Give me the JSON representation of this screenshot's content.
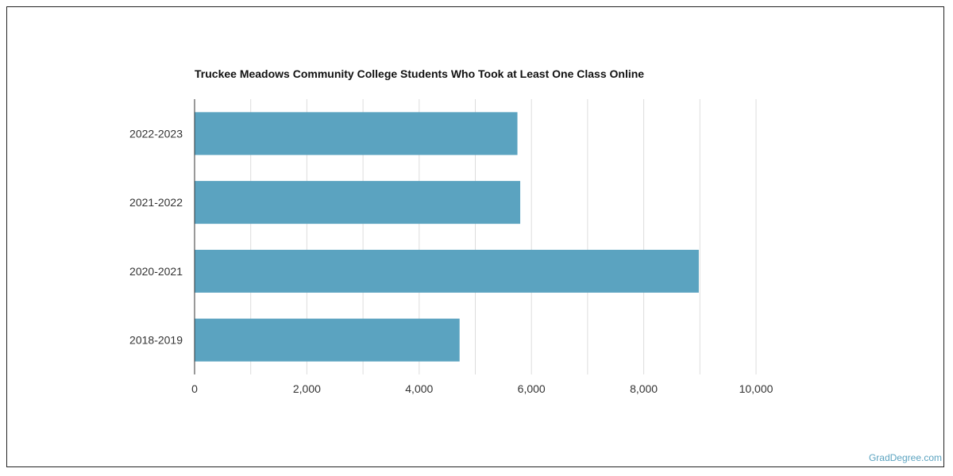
{
  "chart_data": {
    "type": "bar",
    "orientation": "horizontal",
    "title": "Truckee Meadows Community College Students Who Took at Least One Class Online",
    "categories": [
      "2022-2023",
      "2021-2022",
      "2020-2021",
      "2018-2019"
    ],
    "values": [
      5750,
      5800,
      8980,
      4720
    ],
    "xlim": [
      0,
      10000
    ],
    "x_ticks": [
      0,
      2000,
      4000,
      6000,
      8000,
      10000
    ],
    "x_tick_labels": [
      "0",
      "2,000",
      "4,000",
      "6,000",
      "8,000",
      "10,000"
    ],
    "xlabel": "",
    "ylabel": "",
    "grid": true,
    "bar_color": "#5ba3c0"
  },
  "footer": {
    "source_link": "GradDegree.com",
    "link_color": "#5ba3c0"
  }
}
